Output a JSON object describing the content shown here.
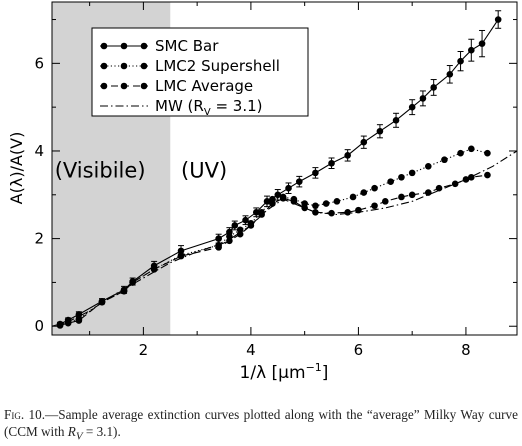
{
  "chart_data": {
    "type": "line",
    "xlabel": "1/λ [μm",
    "xlabel_sup": "−1",
    "xlabel_close": "]",
    "ylabel": "A(λ)/A(V)",
    "xlim": [
      0.3,
      8.95
    ],
    "ylim": [
      -0.2,
      7.4
    ],
    "xticks": [
      2,
      4,
      6,
      8
    ],
    "yticks": [
      0,
      2,
      4,
      6
    ],
    "shaded_region": {
      "x0": 0.3,
      "x1": 2.5,
      "color": "#d3d3d3"
    },
    "region_labels": [
      {
        "text": "(Visibile)",
        "x": 0.35,
        "y": 3.4
      },
      {
        "text": "(UV)",
        "x": 2.7,
        "y": 3.4
      }
    ],
    "legend": {
      "placement": "top-left",
      "entries": [
        {
          "label": "SMC Bar",
          "style": "solid",
          "marker": true
        },
        {
          "label": "LMC2 Supershell",
          "style": "dotted",
          "marker": true
        },
        {
          "label": "LMC Average",
          "style": "dashed",
          "marker": true
        },
        {
          "label": "MW (R",
          "sub": "V",
          "tail": " = 3.1)",
          "style": "dashdot",
          "marker": false
        }
      ]
    },
    "series": [
      {
        "name": "SMC Bar",
        "style": "solid",
        "x": [
          0.45,
          0.6,
          0.8,
          1.23,
          1.64,
          1.8,
          2.2,
          2.7,
          3.4,
          3.6,
          3.7,
          3.9,
          4.1,
          4.3,
          4.5,
          4.7,
          4.9,
          5.2,
          5.5,
          5.8,
          6.1,
          6.4,
          6.7,
          7.0,
          7.2,
          7.4,
          7.7,
          7.9,
          8.1,
          8.3,
          8.6
        ],
        "y": [
          0.05,
          0.14,
          0.27,
          0.57,
          0.83,
          1.02,
          1.38,
          1.72,
          2.0,
          2.15,
          2.3,
          2.42,
          2.6,
          2.85,
          3.0,
          3.15,
          3.3,
          3.5,
          3.72,
          3.9,
          4.2,
          4.45,
          4.7,
          5.0,
          5.2,
          5.45,
          5.75,
          6.05,
          6.3,
          6.45,
          7.0
        ],
        "err": [
          0.04,
          0.05,
          0.06,
          0.06,
          0.08,
          0.08,
          0.1,
          0.12,
          0.1,
          0.1,
          0.1,
          0.1,
          0.1,
          0.12,
          0.12,
          0.12,
          0.12,
          0.12,
          0.12,
          0.13,
          0.14,
          0.15,
          0.16,
          0.17,
          0.17,
          0.18,
          0.2,
          0.22,
          0.25,
          0.3,
          0.2
        ]
      },
      {
        "name": "LMC2 Supershell",
        "style": "dotted",
        "x": [
          0.45,
          0.6,
          0.8,
          1.23,
          1.64,
          1.8,
          2.2,
          2.7,
          3.4,
          3.6,
          3.8,
          4.0,
          4.2,
          4.4,
          4.6,
          4.8,
          5.0,
          5.2,
          5.4,
          5.6,
          5.9,
          6.1,
          6.3,
          6.6,
          6.8,
          7.0,
          7.3,
          7.6,
          7.9,
          8.1,
          8.4
        ],
        "y": [
          0.02,
          0.08,
          0.16,
          0.55,
          0.8,
          1.0,
          1.3,
          1.62,
          1.85,
          2.05,
          2.2,
          2.35,
          2.6,
          2.9,
          2.95,
          2.9,
          2.8,
          2.75,
          2.8,
          2.85,
          2.95,
          3.05,
          3.15,
          3.3,
          3.4,
          3.5,
          3.65,
          3.8,
          3.95,
          4.05,
          3.95
        ]
      },
      {
        "name": "LMC Average",
        "style": "dashed",
        "x": [
          0.45,
          0.6,
          0.8,
          1.23,
          1.64,
          1.8,
          2.2,
          2.7,
          3.4,
          3.6,
          3.8,
          4.0,
          4.2,
          4.4,
          4.6,
          4.8,
          5.0,
          5.2,
          5.5,
          5.8,
          6.0,
          6.3,
          6.5,
          6.8,
          7.0,
          7.3,
          7.5,
          7.8,
          8.0,
          8.1,
          8.4
        ],
        "y": [
          0.02,
          0.07,
          0.13,
          0.55,
          0.8,
          1.0,
          1.3,
          1.6,
          1.8,
          1.95,
          2.1,
          2.3,
          2.55,
          2.8,
          2.92,
          2.85,
          2.7,
          2.6,
          2.58,
          2.6,
          2.65,
          2.75,
          2.85,
          2.95,
          3.0,
          3.05,
          3.15,
          3.25,
          3.35,
          3.4,
          3.45
        ]
      },
      {
        "name": "MW (Rv = 3.1)",
        "style": "dashdot",
        "x": [
          0.3,
          0.6,
          1.0,
          1.5,
          2.0,
          2.5,
          3.0,
          3.5,
          4.0,
          4.3,
          4.6,
          4.9,
          5.2,
          5.6,
          6.0,
          6.5,
          7.0,
          7.5,
          8.0,
          8.5,
          8.95
        ],
        "y": [
          0.0,
          0.1,
          0.35,
          0.75,
          1.1,
          1.45,
          1.7,
          1.9,
          2.3,
          2.65,
          2.9,
          2.75,
          2.6,
          2.55,
          2.6,
          2.7,
          2.85,
          3.1,
          3.35,
          3.65,
          4.0
        ]
      }
    ]
  },
  "caption": {
    "fig_label": "Fig. 10.",
    "text_before": "—Sample average extinction curves plotted along with the “average” Milky Way curve (CCM with ",
    "math_r": "R",
    "math_sub": "V",
    "text_after": " = 3.1)."
  }
}
